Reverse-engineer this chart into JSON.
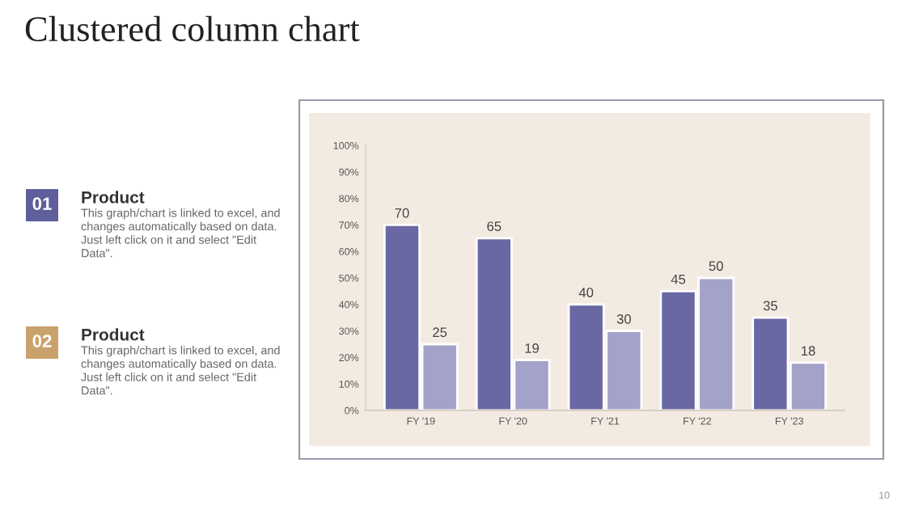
{
  "chart_data": {
    "type": "bar",
    "title": "Clustered column chart",
    "categories": [
      "FY '19",
      "FY '20",
      "FY '21",
      "FY '22",
      "FY '23"
    ],
    "series": [
      {
        "color": "#6a68a2",
        "values": [
          70,
          65,
          40,
          45,
          35
        ]
      },
      {
        "color": "#a3a2c8",
        "values": [
          25,
          19,
          30,
          50,
          18
        ]
      }
    ],
    "ylim": [
      0,
      100
    ],
    "yticks": [
      {
        "value": 0,
        "label": "0%"
      },
      {
        "value": 10,
        "label": "10%"
      },
      {
        "value": 20,
        "label": "20%"
      },
      {
        "value": 30,
        "label": "30%"
      },
      {
        "value": 40,
        "label": "40%"
      },
      {
        "value": 50,
        "label": "50%"
      },
      {
        "value": 60,
        "label": "60%"
      },
      {
        "value": 70,
        "label": "70%"
      },
      {
        "value": 80,
        "label": "80%"
      },
      {
        "value": 90,
        "label": "90%"
      },
      {
        "value": 100,
        "label": "100%"
      }
    ],
    "data_labels": true,
    "grid": false,
    "legend": false,
    "annotations": [
      "01",
      "Product",
      "This graph/chart is linked to excel, and changes automatically based on data. Just left click on it and select \"Edit Data\".",
      "02",
      "Product",
      "This graph/chart is linked to excel, and changes automatically based on data. Just left click on it and select \"Edit Data\".",
      "10"
    ]
  }
}
